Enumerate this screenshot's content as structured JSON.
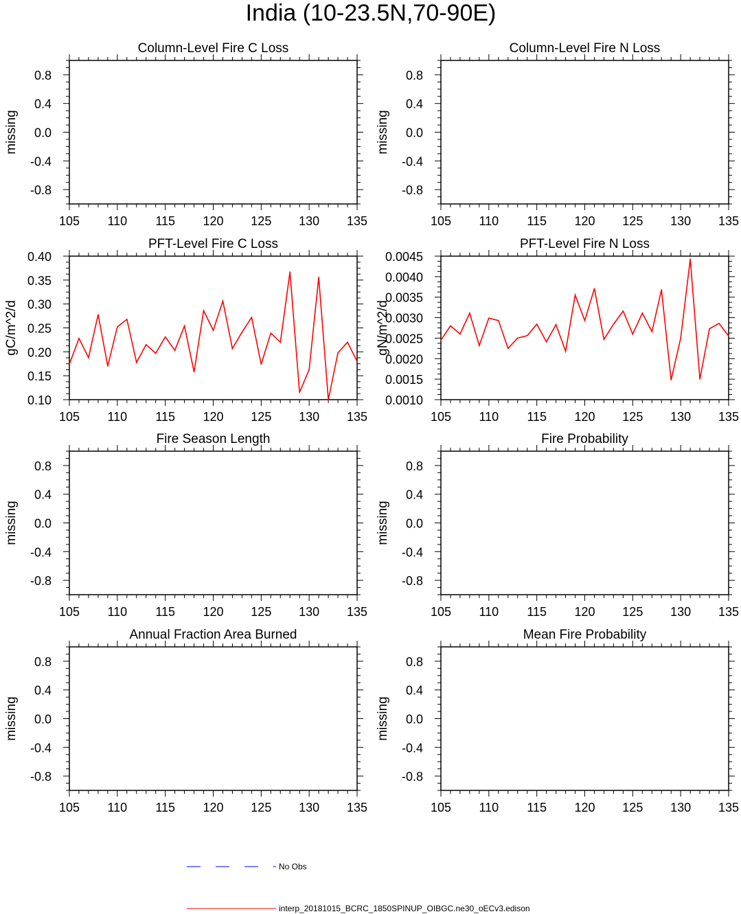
{
  "page_title": "India (10-23.5N,70-90E)",
  "legend": [
    {
      "label": "No Obs",
      "color": "#0000ff",
      "style": "dashed"
    },
    {
      "label": "interp_20181015_BCRC_1850SPINUP_OIBGC.ne30_oECv3.edison",
      "color": "#ff0000",
      "style": "solid"
    }
  ],
  "chart_data": [
    {
      "type": "line",
      "title": "Column-Level Fire C Loss",
      "ylabel": "missing",
      "xlabel": "",
      "xlim": [
        105,
        135
      ],
      "ylim": [
        -1,
        1
      ],
      "xticks": [
        105,
        110,
        115,
        120,
        125,
        130,
        135
      ],
      "yticks": [
        -0.8,
        -0.4,
        0.0,
        0.4,
        0.8
      ],
      "ytick_labels": [
        "-0.8",
        "-0.4",
        "0.0",
        "0.4",
        "0.8"
      ],
      "series": []
    },
    {
      "type": "line",
      "title": "Column-Level Fire N Loss",
      "ylabel": "missing",
      "xlabel": "",
      "xlim": [
        105,
        135
      ],
      "ylim": [
        -1,
        1
      ],
      "xticks": [
        105,
        110,
        115,
        120,
        125,
        130,
        135
      ],
      "yticks": [
        -0.8,
        -0.4,
        0.0,
        0.4,
        0.8
      ],
      "ytick_labels": [
        "-0.8",
        "-0.4",
        "0.0",
        "0.4",
        "0.8"
      ],
      "series": []
    },
    {
      "type": "line",
      "title": "PFT-Level Fire C Loss",
      "ylabel": "gC/m^2/d",
      "xlabel": "",
      "xlim": [
        105,
        135
      ],
      "ylim": [
        0.1,
        0.4
      ],
      "xticks": [
        105,
        110,
        115,
        120,
        125,
        130,
        135
      ],
      "yticks": [
        0.1,
        0.15,
        0.2,
        0.25,
        0.3,
        0.35,
        0.4
      ],
      "ytick_labels": [
        "0.10",
        "0.15",
        "0.20",
        "0.25",
        "0.30",
        "0.35",
        "0.40"
      ],
      "series": [
        {
          "color": "#ff0000",
          "x": [
            105,
            106,
            107,
            108,
            109,
            110,
            111,
            112,
            113,
            114,
            115,
            116,
            117,
            118,
            119,
            120,
            121,
            122,
            123,
            124,
            125,
            126,
            127,
            128,
            129,
            130,
            131,
            132,
            133,
            134,
            135
          ],
          "y": [
            0.174,
            0.228,
            0.188,
            0.278,
            0.17,
            0.252,
            0.268,
            0.178,
            0.215,
            0.197,
            0.231,
            0.203,
            0.254,
            0.158,
            0.286,
            0.245,
            0.306,
            0.207,
            0.241,
            0.272,
            0.174,
            0.239,
            0.22,
            0.367,
            0.115,
            0.163,
            0.356,
            0.1,
            0.198,
            0.22,
            0.18
          ]
        }
      ]
    },
    {
      "type": "line",
      "title": "PFT-Level Fire N Loss",
      "ylabel": "gN/m^2/d",
      "xlabel": "",
      "xlim": [
        105,
        135
      ],
      "ylim": [
        0.001,
        0.0045
      ],
      "xticks": [
        105,
        110,
        115,
        120,
        125,
        130,
        135
      ],
      "yticks": [
        0.001,
        0.0015,
        0.002,
        0.0025,
        0.003,
        0.0035,
        0.004,
        0.0045
      ],
      "ytick_labels": [
        "0.0010",
        "0.0015",
        "0.0020",
        "0.0025",
        "0.0030",
        "0.0035",
        "0.0040",
        "0.0045"
      ],
      "series": [
        {
          "color": "#ff0000",
          "x": [
            105,
            106,
            107,
            108,
            109,
            110,
            111,
            112,
            113,
            114,
            115,
            116,
            117,
            118,
            119,
            120,
            121,
            122,
            123,
            124,
            125,
            126,
            127,
            128,
            129,
            130,
            131,
            132,
            133,
            134,
            135
          ],
          "y": [
            0.00245,
            0.0028,
            0.0026,
            0.00311,
            0.00232,
            0.00299,
            0.00293,
            0.00225,
            0.0025,
            0.00256,
            0.00284,
            0.00241,
            0.00283,
            0.00218,
            0.00355,
            0.00293,
            0.00371,
            0.00247,
            0.00284,
            0.00316,
            0.0026,
            0.00311,
            0.00266,
            0.00368,
            0.00148,
            0.0025,
            0.00443,
            0.0015,
            0.00273,
            0.00286,
            0.00255
          ]
        }
      ]
    },
    {
      "type": "line",
      "title": "Fire Season Length",
      "ylabel": "missing",
      "xlabel": "",
      "xlim": [
        105,
        135
      ],
      "ylim": [
        -1,
        1
      ],
      "xticks": [
        105,
        110,
        115,
        120,
        125,
        130,
        135
      ],
      "yticks": [
        -0.8,
        -0.4,
        0.0,
        0.4,
        0.8
      ],
      "ytick_labels": [
        "-0.8",
        "-0.4",
        "0.0",
        "0.4",
        "0.8"
      ],
      "series": []
    },
    {
      "type": "line",
      "title": "Fire Probability",
      "ylabel": "missing",
      "xlabel": "",
      "xlim": [
        105,
        135
      ],
      "ylim": [
        -1,
        1
      ],
      "xticks": [
        105,
        110,
        115,
        120,
        125,
        130,
        135
      ],
      "yticks": [
        -0.8,
        -0.4,
        0.0,
        0.4,
        0.8
      ],
      "ytick_labels": [
        "-0.8",
        "-0.4",
        "0.0",
        "0.4",
        "0.8"
      ],
      "series": []
    },
    {
      "type": "line",
      "title": "Annual Fraction Area Burned",
      "ylabel": "missing",
      "xlabel": "",
      "xlim": [
        105,
        135
      ],
      "ylim": [
        -1,
        1
      ],
      "xticks": [
        105,
        110,
        115,
        120,
        125,
        130,
        135
      ],
      "yticks": [
        -0.8,
        -0.4,
        0.0,
        0.4,
        0.8
      ],
      "ytick_labels": [
        "-0.8",
        "-0.4",
        "0.0",
        "0.4",
        "0.8"
      ],
      "series": []
    },
    {
      "type": "line",
      "title": "Mean Fire Probability",
      "ylabel": "missing",
      "xlabel": "",
      "xlim": [
        105,
        135
      ],
      "ylim": [
        -1,
        1
      ],
      "xticks": [
        105,
        110,
        115,
        120,
        125,
        130,
        135
      ],
      "yticks": [
        -0.8,
        -0.4,
        0.0,
        0.4,
        0.8
      ],
      "ytick_labels": [
        "-0.8",
        "-0.4",
        "0.0",
        "0.4",
        "0.8"
      ],
      "series": []
    }
  ]
}
